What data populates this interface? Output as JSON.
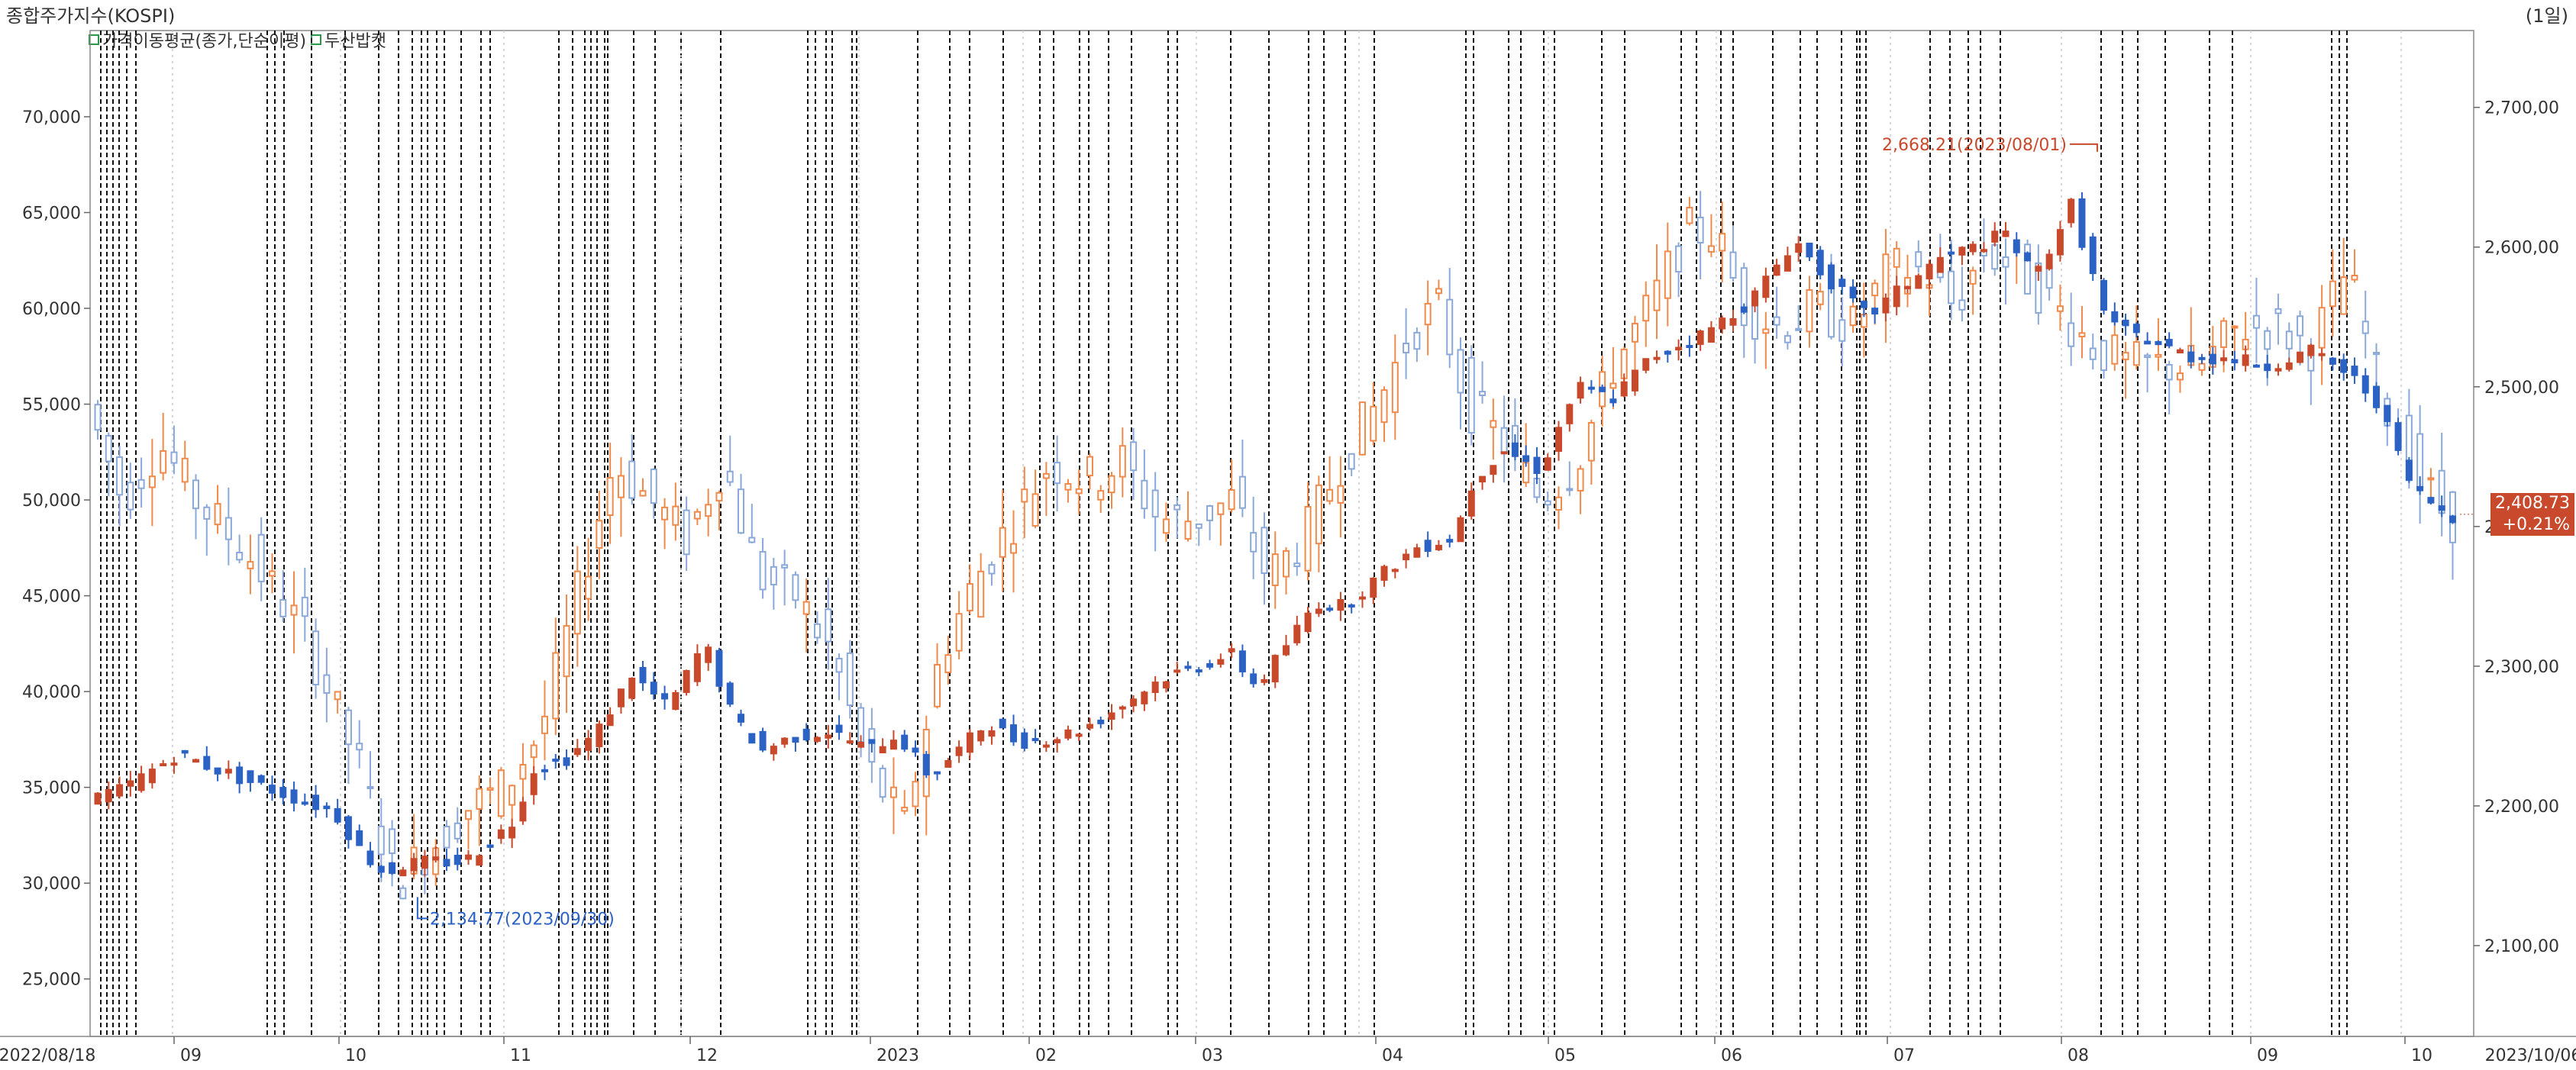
{
  "title": "종합주가지수(KOSPI)",
  "period": "(1일)",
  "legend": [
    {
      "label": "가격이동평균(종가,단순이평)"
    },
    {
      "label": "두산밥캣"
    }
  ],
  "price_box": {
    "value": "2,408.73",
    "change": "+0.21%"
  },
  "annotations": {
    "low": "2,134.77(2023/09/30)",
    "high": "2,668.21(2023/08/01)"
  },
  "colors": {
    "up": "#c8492b",
    "down": "#2b62c4",
    "overlay_up": "#f08a4b",
    "overlay_down": "#8aa8d8",
    "grid": "#000000"
  },
  "chart_data": {
    "type": "candlestick",
    "title": "종합주가지수(KOSPI)",
    "x_start": "2022/08/18",
    "x_end": "2023/10/06",
    "x_tick_labels": [
      "2022/08/18",
      "09",
      "10",
      "11",
      "12",
      "2023",
      "02",
      "03",
      "04",
      "05",
      "06",
      "07",
      "08",
      "09",
      "10",
      "2023/10/06"
    ],
    "left_axis": {
      "ticks": [
        "25,000",
        "30,000",
        "35,000",
        "40,000",
        "45,000",
        "50,000",
        "55,000",
        "60,000",
        "65,000",
        "70,000"
      ],
      "ylim": [
        22000,
        74500
      ]
    },
    "right_axis": {
      "ticks": [
        "2,100,00",
        "2,200,00",
        "2,300,00",
        "2,400,00",
        "2,500,00",
        "2,600,00",
        "2,700,00"
      ],
      "ylim": [
        2035,
        2755
      ]
    },
    "series": [
      {
        "name": "종합주가지수(KOSPI)",
        "axis": "right",
        "keypoints": [
          [
            0,
            2204
          ],
          [
            10,
            2212
          ],
          [
            25,
            2237
          ],
          [
            40,
            2222
          ],
          [
            55,
            2208
          ],
          [
            68,
            2196
          ],
          [
            76,
            2166
          ],
          [
            82,
            2152
          ],
          [
            88,
            2158
          ],
          [
            95,
            2160
          ],
          [
            104,
            2160
          ],
          [
            110,
            2172
          ],
          [
            118,
            2190
          ],
          [
            122,
            2225
          ],
          [
            132,
            2234
          ],
          [
            140,
            2251
          ],
          [
            150,
            2294
          ],
          [
            160,
            2270
          ],
          [
            170,
            2317
          ],
          [
            178,
            2262
          ],
          [
            186,
            2240
          ],
          [
            195,
            2250
          ],
          [
            205,
            2253
          ],
          [
            215,
            2240
          ],
          [
            223,
            2251
          ],
          [
            232,
            2221
          ],
          [
            240,
            2240
          ],
          [
            248,
            2260
          ],
          [
            256,
            2246
          ],
          [
            265,
            2248
          ],
          [
            274,
            2255
          ],
          [
            285,
            2272
          ],
          [
            295,
            2290
          ],
          [
            305,
            2300
          ],
          [
            315,
            2308
          ],
          [
            322,
            2285
          ],
          [
            330,
            2315
          ],
          [
            338,
            2345
          ],
          [
            346,
            2343
          ],
          [
            356,
            2365
          ],
          [
            366,
            2385
          ],
          [
            376,
            2392
          ],
          [
            382,
            2435
          ],
          [
            390,
            2455
          ],
          [
            400,
            2440
          ],
          [
            410,
            2500
          ],
          [
            420,
            2492
          ],
          [
            430,
            2520
          ],
          [
            445,
            2538
          ],
          [
            458,
            2562
          ],
          [
            470,
            2605
          ],
          [
            478,
            2580
          ],
          [
            490,
            2550
          ],
          [
            500,
            2572
          ],
          [
            510,
            2592
          ],
          [
            520,
            2600
          ],
          [
            528,
            2610
          ],
          [
            536,
            2578
          ],
          [
            546,
            2630
          ],
          [
            556,
            2545
          ],
          [
            566,
            2535
          ],
          [
            578,
            2522
          ],
          [
            590,
            2520
          ],
          [
            600,
            2515
          ],
          [
            612,
            2525
          ],
          [
            622,
            2510
          ],
          [
            630,
            2490
          ],
          [
            640,
            2427
          ],
          [
            650,
            2408
          ]
        ],
        "min": {
          "value": 2134.77,
          "label": "2,134.77(2023/09/30)"
        },
        "max": {
          "value": 2668.21,
          "label": "2,668.21(2023/08/01)"
        },
        "last": {
          "value": 2408.73,
          "change": "+0.21%"
        }
      },
      {
        "name": "두산밥캣",
        "axis": "left",
        "keypoints": [
          [
            0,
            55000
          ],
          [
            10,
            50000
          ],
          [
            20,
            53000
          ],
          [
            30,
            50000
          ],
          [
            45,
            47000
          ],
          [
            60,
            43000
          ],
          [
            75,
            36000
          ],
          [
            85,
            30000
          ],
          [
            95,
            32000
          ],
          [
            105,
            34000
          ],
          [
            115,
            35000
          ],
          [
            125,
            38000
          ],
          [
            135,
            45000
          ],
          [
            145,
            52000
          ],
          [
            155,
            50000
          ],
          [
            165,
            48000
          ],
          [
            175,
            52000
          ],
          [
            185,
            46000
          ],
          [
            195,
            45000
          ],
          [
            205,
            42000
          ],
          [
            215,
            36000
          ],
          [
            225,
            33000
          ],
          [
            235,
            42000
          ],
          [
            245,
            46000
          ],
          [
            255,
            49000
          ],
          [
            265,
            52000
          ],
          [
            275,
            51000
          ],
          [
            285,
            52000
          ],
          [
            295,
            49000
          ],
          [
            305,
            49000
          ],
          [
            315,
            50000
          ],
          [
            325,
            46000
          ],
          [
            335,
            48000
          ],
          [
            345,
            52000
          ],
          [
            355,
            55000
          ],
          [
            365,
            59000
          ],
          [
            372,
            60000
          ],
          [
            380,
            55000
          ],
          [
            390,
            53000
          ],
          [
            400,
            50000
          ],
          [
            410,
            52000
          ],
          [
            420,
            57000
          ],
          [
            430,
            60000
          ],
          [
            440,
            64000
          ],
          [
            448,
            64000
          ],
          [
            456,
            60000
          ],
          [
            466,
            59000
          ],
          [
            476,
            60000
          ],
          [
            486,
            59000
          ],
          [
            496,
            62000
          ],
          [
            506,
            62000
          ],
          [
            514,
            60000
          ],
          [
            522,
            63000
          ],
          [
            532,
            62000
          ],
          [
            542,
            60000
          ],
          [
            552,
            58000
          ],
          [
            562,
            57000
          ],
          [
            572,
            57000
          ],
          [
            582,
            57000
          ],
          [
            592,
            59000
          ],
          [
            602,
            59000
          ],
          [
            612,
            58000
          ],
          [
            622,
            62000
          ],
          [
            632,
            55000
          ],
          [
            642,
            51000
          ],
          [
            650,
            49000
          ]
        ]
      }
    ]
  }
}
